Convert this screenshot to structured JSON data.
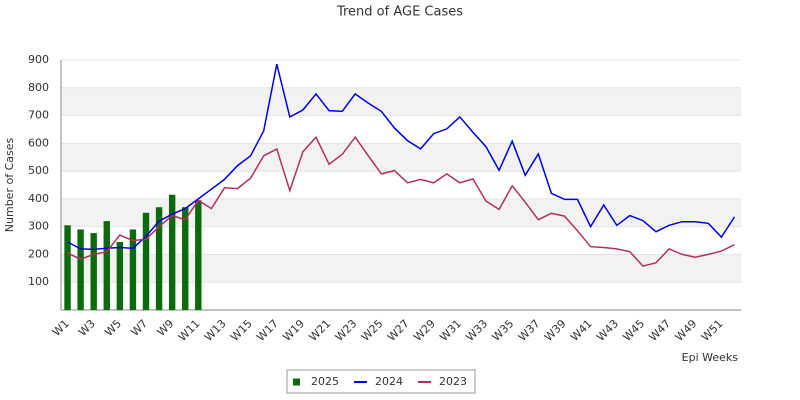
{
  "chart_data": {
    "type": "bar",
    "title": "Trend of AGE Cases",
    "y_label": "Number of Cases",
    "x_label": "Epi Weeks",
    "categories": [
      "W1",
      null,
      "W3",
      null,
      "W5",
      null,
      "W7",
      null,
      "W9",
      null,
      "W11",
      null,
      "W13",
      null,
      "W15",
      null,
      "W17",
      null,
      "W19",
      null,
      "W21",
      null,
      "W23",
      null,
      "W25",
      null,
      "W27",
      null,
      "W29",
      null,
      "W31",
      null,
      "W33",
      null,
      "W35",
      null,
      "W37",
      null,
      "W39",
      null,
      "W41",
      null,
      "W43",
      null,
      "W45",
      null,
      "W47",
      null,
      "W49",
      null,
      "W51",
      null
    ],
    "series": [
      {
        "name": "2025",
        "type": "bar",
        "color": "#0b6b0b",
        "values": [
          305,
          290,
          277,
          320,
          245,
          290,
          350,
          370,
          415,
          370,
          395,
          null,
          null,
          null,
          null,
          null,
          null,
          null,
          null,
          null,
          null,
          null,
          null,
          null,
          null,
          null,
          null,
          null,
          null,
          null,
          null,
          null,
          null,
          null,
          null,
          null,
          null,
          null,
          null,
          null,
          null,
          null,
          null,
          null,
          null,
          null,
          null,
          null,
          null,
          null,
          null,
          null
        ]
      },
      {
        "name": "2024",
        "type": "line",
        "color": "#0000e0",
        "values": [
          245,
          220,
          218,
          222,
          225,
          222,
          265,
          320,
          345,
          365,
          400,
          435,
          470,
          520,
          555,
          645,
          885,
          695,
          720,
          778,
          718,
          715,
          778,
          745,
          715,
          655,
          610,
          580,
          635,
          652,
          695,
          640,
          588,
          503,
          608,
          485,
          562,
          420,
          398,
          398,
          300,
          378,
          305,
          340,
          322,
          282,
          305,
          318,
          318,
          312,
          262,
          335
        ]
      },
      {
        "name": "2023",
        "type": "line",
        "color": "#b03060",
        "values": [
          205,
          183,
          200,
          210,
          270,
          250,
          255,
          300,
          340,
          325,
          395,
          365,
          440,
          437,
          475,
          555,
          580,
          430,
          570,
          622,
          525,
          560,
          622,
          555,
          490,
          502,
          458,
          470,
          458,
          490,
          458,
          472,
          392,
          362,
          447,
          388,
          325,
          348,
          338,
          285,
          228,
          225,
          220,
          210,
          158,
          170,
          220,
          200,
          190,
          200,
          212,
          235
        ]
      }
    ],
    "ylim": [
      0,
      900
    ],
    "yticks": [
      100,
      200,
      300,
      400,
      500,
      600,
      700,
      800,
      900
    ],
    "grid": true,
    "legend": "bottom"
  }
}
